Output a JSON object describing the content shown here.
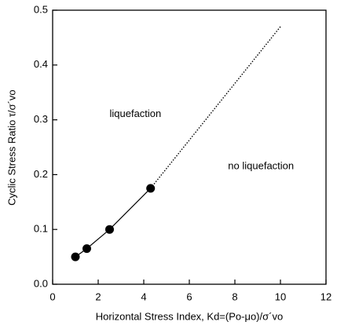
{
  "chart_data": {
    "type": "line",
    "xlabel": "Horizontal Stress Index, Kd=(Po-μo)/σ´vo",
    "ylabel": "Cyclic Stress Ratio τ/σ´vo",
    "xlim": [
      0,
      12
    ],
    "xticks": [
      0,
      2,
      4,
      6,
      8,
      10,
      12
    ],
    "ylim": [
      0,
      0.5
    ],
    "yticks": [
      {
        "value": 0,
        "label": "0.0"
      },
      0.1,
      0.2,
      0.3,
      0.4,
      0.5
    ],
    "series": [
      {
        "x": [
          1,
          1.5,
          2.5,
          4.3
        ],
        "values": [
          0.05,
          0.065,
          0.1,
          0.175
        ],
        "color": "#000",
        "style": "solid",
        "markers": true
      },
      {
        "x": [
          4.3,
          10
        ],
        "values": [
          0.175,
          0.47
        ],
        "color": "#000",
        "style": "dotted",
        "markers": false
      }
    ],
    "annotations": [
      {
        "text": "liquefaction",
        "x": 2.5,
        "y": 0.31
      },
      {
        "text": "no liquefaction",
        "x": 7.7,
        "y": 0.215
      }
    ]
  }
}
